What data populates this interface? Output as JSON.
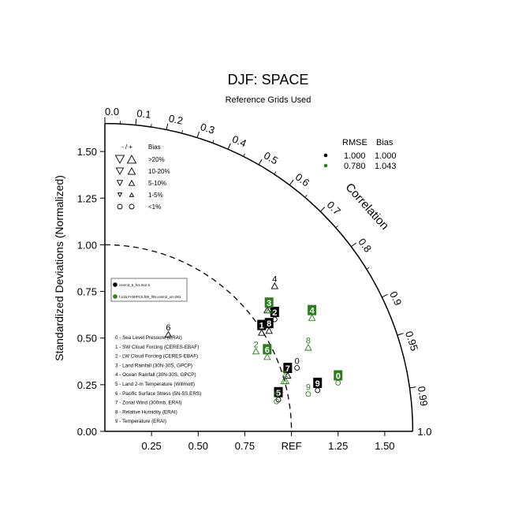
{
  "chart_data": {
    "type": "taylor-diagram",
    "title": "DJF: SPACE",
    "subtitle": "Reference Grids Used",
    "ylabel": "Standardized Deviations (Normalized)",
    "arc_label": "Correlation",
    "std_range": [
      0,
      1.65
    ],
    "std_ticks": [
      "0.00",
      "0.25",
      "0.50",
      "0.75",
      "1.00",
      "1.25",
      "1.50"
    ],
    "x_ticks": [
      "0.25",
      "0.50",
      "0.75",
      "REF",
      "1.25",
      "1.50"
    ],
    "outer_label": "1.0",
    "corr_ticks": [
      {
        "value": 0.0,
        "label": "0.0"
      },
      {
        "value": 0.1,
        "label": "0.1"
      },
      {
        "value": 0.2,
        "label": "0.2"
      },
      {
        "value": 0.3,
        "label": "0.3"
      },
      {
        "value": 0.4,
        "label": "0.4"
      },
      {
        "value": 0.5,
        "label": "0.5"
      },
      {
        "value": 0.6,
        "label": "0.6"
      },
      {
        "value": 0.7,
        "label": "0.7"
      },
      {
        "value": 0.8,
        "label": "0.8"
      },
      {
        "value": 0.9,
        "label": "0.9"
      },
      {
        "value": 0.95,
        "label": "0.95"
      },
      {
        "value": 0.99,
        "label": "0.99"
      }
    ],
    "bias_legend": {
      "header_sign": "- / +",
      "header": "Bias",
      "rows": [
        {
          "label": ">20%",
          "symbol": "triangle-large"
        },
        {
          "label": "10-20%",
          "symbol": "triangle-medium"
        },
        {
          "label": "5-10%",
          "symbol": "triangle-small"
        },
        {
          "label": "1-5%",
          "symbol": "triangle-tiny"
        },
        {
          "label": "<1%",
          "symbol": "circle"
        }
      ]
    },
    "stats_table": {
      "headers": [
        "RMSE",
        "Bias"
      ],
      "rows": [
        {
          "color": "#000000",
          "rmse": "1.000",
          "bias": "1.000"
        },
        {
          "color": "#2e7d1e",
          "rmse": "0.780",
          "bias": "1.043"
        }
      ]
    },
    "case_legend": [
      {
        "label": "cesm3_5_fv1.9x2.5",
        "color": "#000000"
      },
      {
        "label": "f.e15.FAMIPC5.f09_f09.cesm2_xm.001",
        "color": "#2e7d1e"
      }
    ],
    "variables": [
      "0 - Sea Level Pressure (ERAI)",
      "1 - SW Cloud Forcing (CERES-EBAF)",
      "2 - LW Cloud Forcing (CERES-EBAF)",
      "3 - Land Rainfall (30N-30S, GPCP)",
      "4 - Ocean Rainfall (30N-30S, GPCP)",
      "5 - Land 2-m Temperature (Willmott)",
      "6 - Pacific Surface Stress (5N-5S,ERS)",
      "7 - Zonal Wind (300mb, ERAI)",
      "8 - Relative Humidity (ERAI)",
      "9 - Temperature (ERAI)"
    ],
    "series": [
      {
        "color": "#000000",
        "points": [
          {
            "id": "0",
            "x": 1.03,
            "y": 0.34,
            "symbol": "circle",
            "label_style": "plain"
          },
          {
            "id": "1",
            "x": 0.84,
            "y": 0.53,
            "symbol": "triangle",
            "label_style": "boxed"
          },
          {
            "id": "2",
            "x": 0.91,
            "y": 0.6,
            "symbol": "circle",
            "label_style": "boxed"
          },
          {
            "id": "3",
            "x": 0.87,
            "y": 0.65,
            "symbol": "triangle",
            "label_style": "plain"
          },
          {
            "id": "4",
            "x": 0.91,
            "y": 0.78,
            "symbol": "triangle",
            "label_style": "plain"
          },
          {
            "id": "5",
            "x": 0.93,
            "y": 0.17,
            "symbol": "circle",
            "label_style": "boxed"
          },
          {
            "id": "6",
            "x": 0.34,
            "y": 0.52,
            "symbol": "triangle",
            "label_style": "plain"
          },
          {
            "id": "7",
            "x": 0.98,
            "y": 0.3,
            "symbol": "triangle",
            "label_style": "boxed"
          },
          {
            "id": "8",
            "x": 0.88,
            "y": 0.54,
            "symbol": "triangle",
            "label_style": "boxed"
          },
          {
            "id": "9",
            "x": 1.14,
            "y": 0.22,
            "symbol": "circle",
            "label_style": "boxed"
          }
        ]
      },
      {
        "color": "#2e7d1e",
        "points": [
          {
            "id": "0",
            "x": 1.25,
            "y": 0.26,
            "symbol": "circle",
            "label_style": "boxed"
          },
          {
            "id": "1",
            "x": 0.97,
            "y": 0.27,
            "symbol": "triangle",
            "label_style": "plain"
          },
          {
            "id": "2",
            "x": 0.81,
            "y": 0.43,
            "symbol": "triangle",
            "label_style": "plain"
          },
          {
            "id": "3",
            "x": 0.88,
            "y": 0.65,
            "symbol": "triangle",
            "label_style": "boxed"
          },
          {
            "id": "4",
            "x": 1.11,
            "y": 0.61,
            "symbol": "triangle",
            "label_style": "boxed"
          },
          {
            "id": "5",
            "x": 0.92,
            "y": 0.16,
            "symbol": "circle",
            "label_style": "plain"
          },
          {
            "id": "6",
            "x": 0.87,
            "y": 0.4,
            "symbol": "triangle",
            "label_style": "boxed"
          },
          {
            "id": "7",
            "x": 0.96,
            "y": 0.27,
            "symbol": "triangle",
            "label_style": "plain"
          },
          {
            "id": "8",
            "x": 1.09,
            "y": 0.45,
            "symbol": "triangle",
            "label_style": "plain"
          },
          {
            "id": "9",
            "x": 1.09,
            "y": 0.2,
            "symbol": "circle",
            "label_style": "plain"
          }
        ]
      }
    ]
  }
}
